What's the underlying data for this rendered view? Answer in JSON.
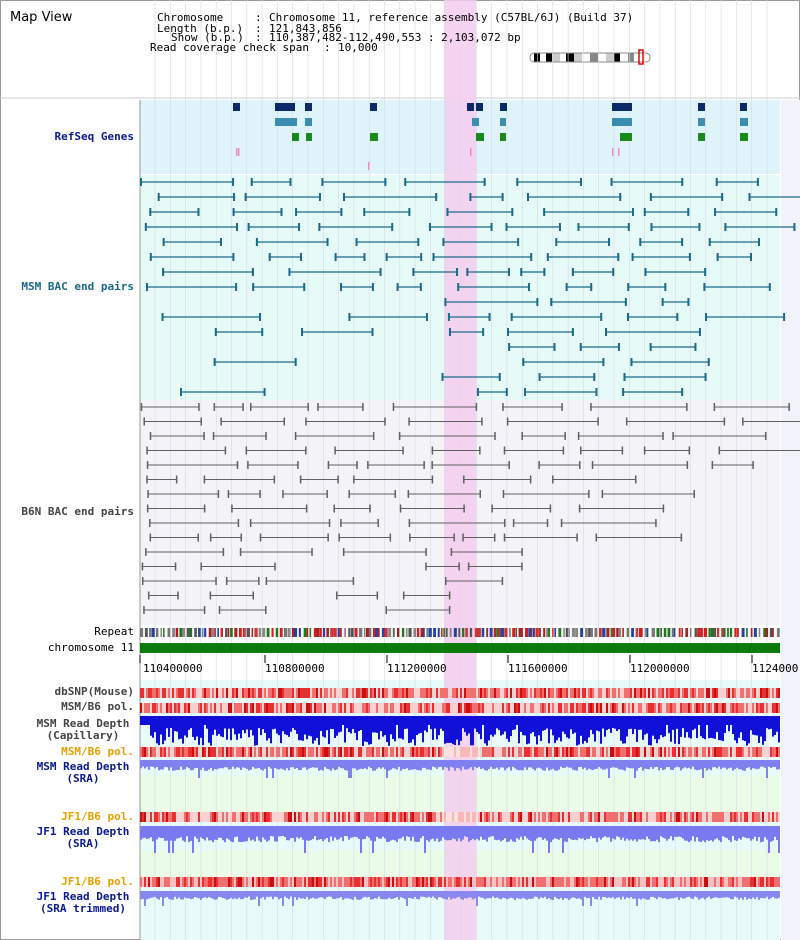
{
  "header": {
    "title": "Map View",
    "chromosome_key": "Chromosome",
    "chromosome_value": "Chromosome 11, reference assembly (C57BL/6J) (Build 37)",
    "length_key": "Length (b.p.)",
    "length_value": "121,843,856",
    "show_key": "Show (b.p.)",
    "show_value": "110,387,482-112,490,553 : 2,103,072 bp",
    "coverage_key": "Read coverage check span",
    "coverage_value": "10,000"
  },
  "tracks": {
    "refseq": "RefSeq Genes",
    "msm_bac": "MSM BAC end pairs",
    "b6n_bac": "B6N BAC end pairs",
    "repeat": "Repeat",
    "chromosome": "chromosome 11",
    "dbsnp": "dbSNP(Mouse)",
    "msm_b6_pol": "MSM/B6 pol.",
    "msm_read_depth_cap_1": "MSM Read Depth",
    "msm_read_depth_cap_2": "(Capillary)",
    "msm_b6_pol_2": "MSM/B6 pol.",
    "msm_read_depth_sra_1": "MSM Read Depth",
    "msm_read_depth_sra_2": "(SRA)",
    "jf1_b6_pol": "JF1/B6 pol.",
    "jf1_read_depth_sra_1": "JF1 Read Depth",
    "jf1_read_depth_sra_2": "(SRA)",
    "jf1_b6_pol_2": "JF1/B6 pol.",
    "jf1_read_depth_trim_1": "JF1 Read Depth",
    "jf1_read_depth_trim_2": "(SRA trimmed)"
  },
  "axis": {
    "ticks": [
      "110400000",
      "110800000",
      "111200000",
      "111600000",
      "112000000",
      "1124000"
    ]
  },
  "colors": {
    "refseq_bg": "#dff3fb",
    "msm_bg": "#e6fbf8",
    "b6n_bg": "#f4f4f8",
    "highlight": "#f5cdef",
    "gene_dark": "#0a2a6a",
    "gene_mid": "#3a8cb0",
    "gene_green": "#1a8a1a",
    "msm_line": "#1a6a8a",
    "b6n_line": "#606060",
    "chromosome_bar": "#0a7a0a",
    "label_blue": "#0a1a90",
    "label_teal": "#1a6a8a",
    "label_orange": "#e8a000",
    "label_gray": "#444444"
  }
}
